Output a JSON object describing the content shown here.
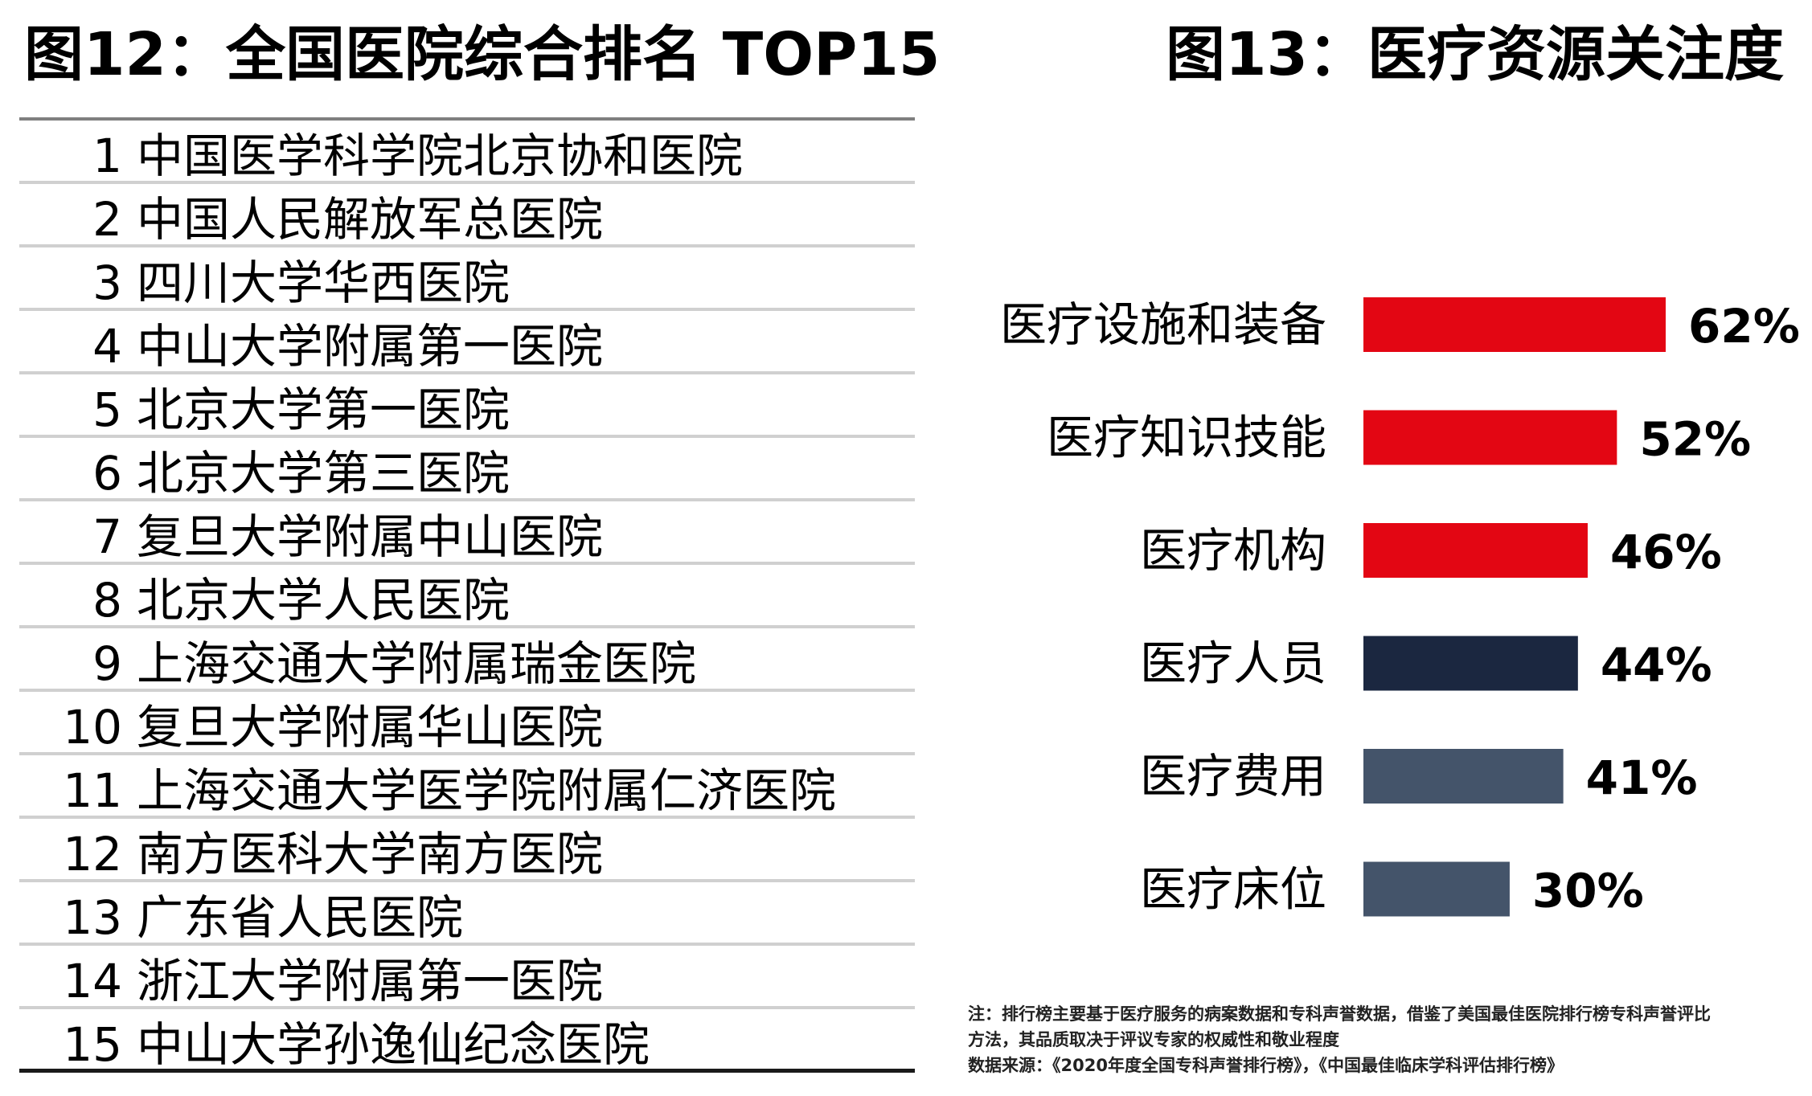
{
  "titles": {
    "left": "图12：全国医院综合排名 TOP15",
    "right": "图13：医疗资源关注度"
  },
  "ranking": [
    {
      "rank": "1",
      "name": "中国医学科学院北京协和医院"
    },
    {
      "rank": "2",
      "name": "中国人民解放军总医院"
    },
    {
      "rank": "3",
      "name": "四川大学华西医院"
    },
    {
      "rank": "4",
      "name": "中山大学附属第一医院"
    },
    {
      "rank": "5",
      "name": "北京大学第一医院"
    },
    {
      "rank": "6",
      "name": "北京大学第三医院"
    },
    {
      "rank": "7",
      "name": "复旦大学附属中山医院"
    },
    {
      "rank": "8",
      "name": "北京大学人民医院"
    },
    {
      "rank": "9",
      "name": "上海交通大学附属瑞金医院"
    },
    {
      "rank": "10",
      "name": "复旦大学附属华山医院"
    },
    {
      "rank": "11",
      "name": "上海交通大学医学院附属仁济医院"
    },
    {
      "rank": "12",
      "name": "南方医科大学南方医院"
    },
    {
      "rank": "13",
      "name": "广东省人民医院"
    },
    {
      "rank": "14",
      "name": "浙江大学附属第一医院"
    },
    {
      "rank": "15",
      "name": "中山大学孙逸仙纪念医院"
    }
  ],
  "chart_data": {
    "type": "bar",
    "orientation": "horizontal",
    "title": "图13：医疗资源关注度",
    "categories": [
      "医疗设施和装备",
      "医疗知识技能",
      "医疗机构",
      "医疗人员",
      "医疗费用",
      "医疗床位"
    ],
    "values": [
      62,
      52,
      46,
      44,
      41,
      30
    ],
    "value_labels": [
      "62%",
      "52%",
      "46%",
      "44%",
      "41%",
      "30%"
    ],
    "colors": [
      "#e30613",
      "#e30613",
      "#e30613",
      "#1b2740",
      "#44546a",
      "#44546a"
    ],
    "xlim": [
      0,
      62
    ],
    "grid": false,
    "legend": "none"
  },
  "notes": {
    "line1": "注：排行榜主要基于医疗服务的病案数据和专科声誉数据，借鉴了美国最佳医院排行榜专科声誉评比",
    "line2": "方法，其品质取决于评议专家的权威性和敬业程度",
    "line3": "数据来源：《2020年度全国专科声誉排行榜》，《中国最佳临床学科评估排行榜》"
  }
}
